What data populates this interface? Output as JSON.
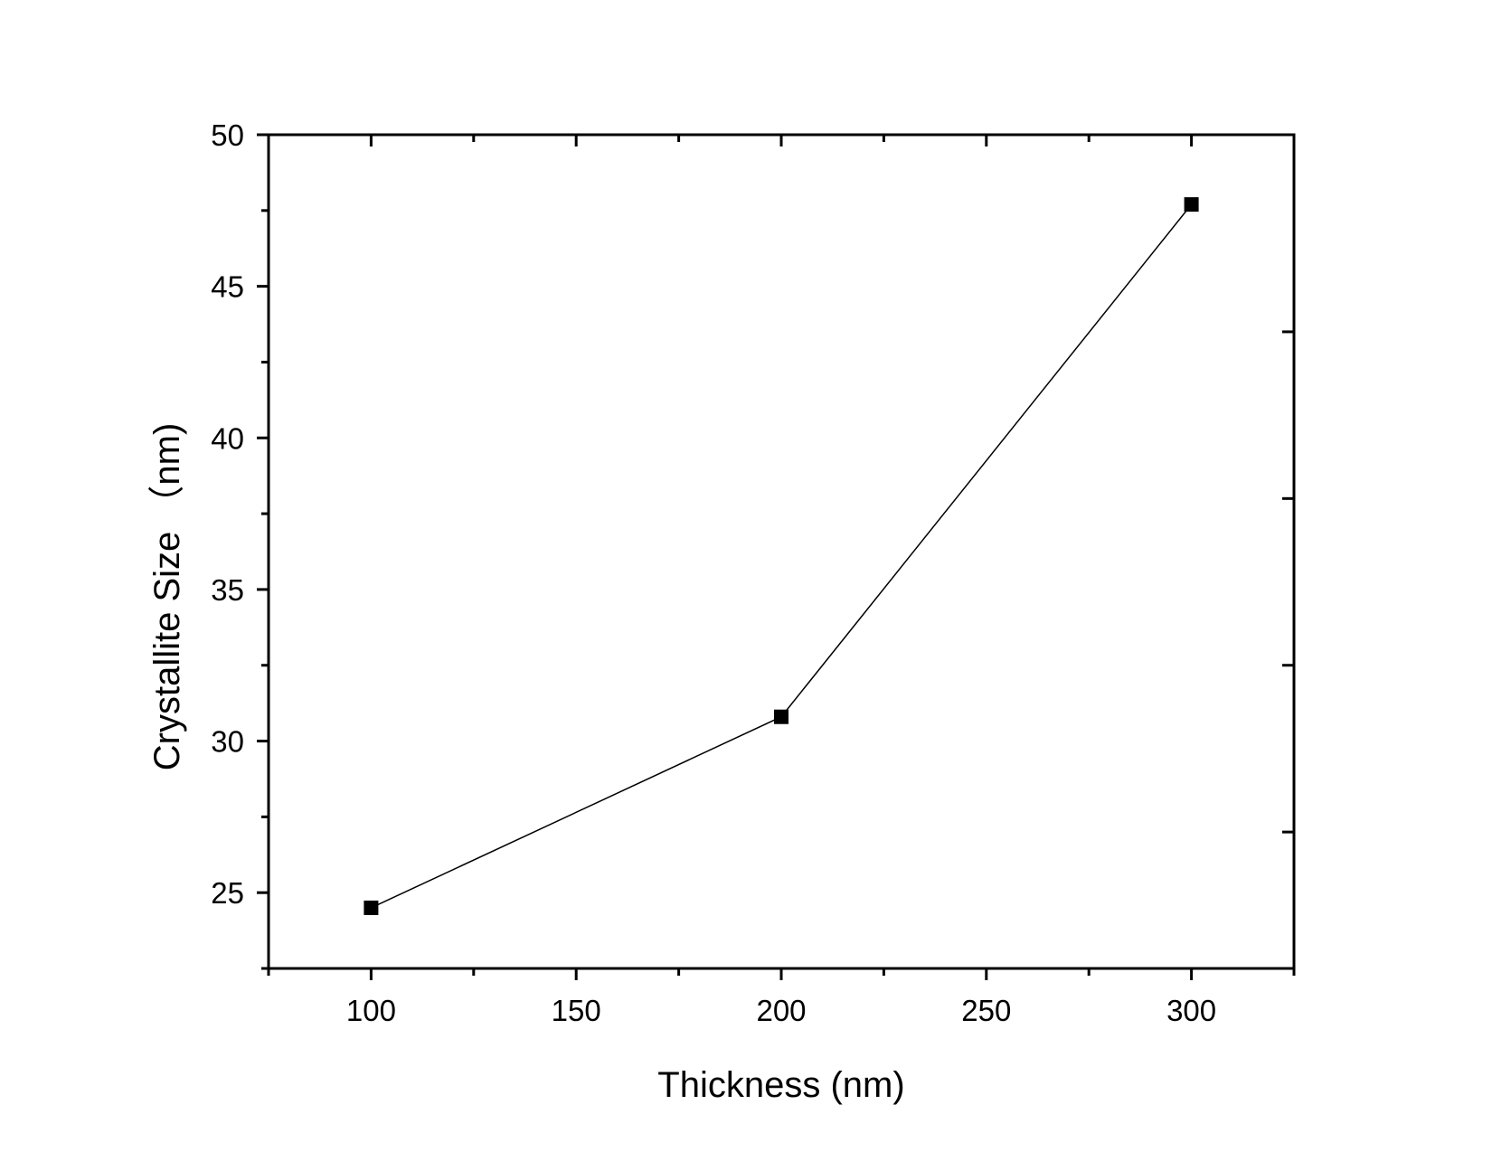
{
  "chart_data": {
    "type": "line",
    "xlabel": "Thickness (nm)",
    "ylabel": "Crystallite Size （nm)",
    "xlim": [
      75,
      325
    ],
    "ylim": [
      22.5,
      50
    ],
    "x_ticks": [
      100,
      150,
      200,
      250,
      300
    ],
    "x_tick_labels": [
      "100",
      "150",
      "200",
      "250",
      "300"
    ],
    "y_ticks": [
      25,
      30,
      35,
      40,
      45,
      50
    ],
    "y_tick_labels": [
      "25",
      "30",
      "35",
      "40",
      "45",
      "50"
    ],
    "grid": false,
    "legend": "none",
    "marker": "square",
    "series": [
      {
        "x": [
          100,
          200,
          300
        ],
        "y": [
          24.5,
          30.8,
          47.7
        ],
        "color": "#000000"
      }
    ]
  }
}
